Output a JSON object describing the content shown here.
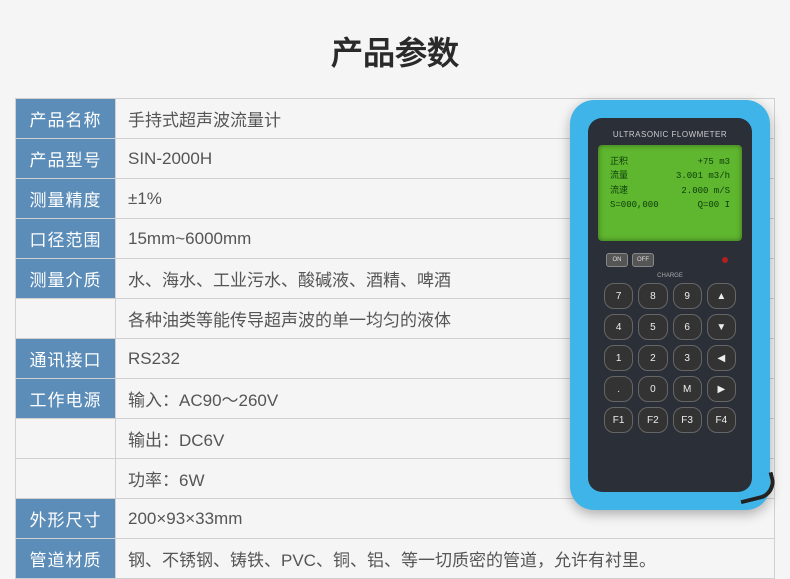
{
  "title": "产品参数",
  "rows": [
    {
      "label": "产品名称",
      "value": "手持式超声波流量计"
    },
    {
      "label": "产品型号",
      "value": "SIN-2000H"
    },
    {
      "label": "测量精度",
      "value": "±1%"
    },
    {
      "label": "口径范围",
      "value": "15mm~6000mm"
    },
    {
      "label": "测量介质",
      "value": "水、海水、工业污水、酸碱液、酒精、啤酒"
    },
    {
      "label": "",
      "value": "各种油类等能传导超声波的单一均匀的液体"
    },
    {
      "label": "通讯接口",
      "value": "RS232"
    },
    {
      "label": "工作电源",
      "value": "输入：AC90～260V"
    },
    {
      "label": "",
      "value": "输出：DC6V"
    },
    {
      "label": "",
      "value": "功率：6W"
    },
    {
      "label": "外形尺寸",
      "value": "200×93×33mm"
    },
    {
      "label": "管道材质",
      "value": "钢、不锈钢、铸铁、PVC、铜、铝、等一切质密的管道，允许有衬里。"
    }
  ],
  "device": {
    "brand": "ULTRASONIC FLOWMETER",
    "screen": {
      "line1_l": "正积",
      "line1_r": "+75  m3",
      "line2_l": "流量",
      "line2_r": "3.001  m3/h",
      "line3_l": "流速",
      "line3_r": "2.000  m/S",
      "line4_l": "S=000,000",
      "line4_r": "Q=00 I"
    },
    "on": "ON",
    "off": "OFF",
    "charge": "CHARGE",
    "keys": [
      "7",
      "8",
      "9",
      "▲",
      "4",
      "5",
      "6",
      "▼",
      "1",
      "2",
      "3",
      "◀",
      ".",
      "0",
      "M",
      "▶",
      "F1",
      "F2",
      "F3",
      "F4"
    ]
  },
  "colors": {
    "header_bg": "#5b8db8",
    "device_blue": "#3fb4e8",
    "screen_green": "#5fb62f"
  }
}
